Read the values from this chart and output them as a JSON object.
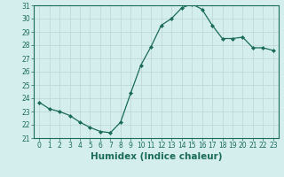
{
  "x": [
    0,
    1,
    2,
    3,
    4,
    5,
    6,
    7,
    8,
    9,
    10,
    11,
    12,
    13,
    14,
    15,
    16,
    17,
    18,
    19,
    20,
    21,
    22,
    23
  ],
  "y": [
    23.7,
    23.2,
    23.0,
    22.7,
    22.2,
    21.8,
    21.5,
    21.4,
    22.2,
    24.4,
    26.5,
    27.9,
    29.5,
    30.0,
    30.8,
    31.1,
    30.7,
    29.5,
    28.5,
    28.5,
    28.6,
    27.8,
    27.8,
    27.6
  ],
  "line_color": "#1a6b5a",
  "marker": "D",
  "marker_size": 2.0,
  "background_color": "#d4eeee",
  "grid_color": "#c0d8d8",
  "xlabel": "Humidex (Indice chaleur)",
  "ylim": [
    21,
    31
  ],
  "xlim": [
    -0.5,
    23.5
  ],
  "yticks": [
    21,
    22,
    23,
    24,
    25,
    26,
    27,
    28,
    29,
    30,
    31
  ],
  "xticks": [
    0,
    1,
    2,
    3,
    4,
    5,
    6,
    7,
    8,
    9,
    10,
    11,
    12,
    13,
    14,
    15,
    16,
    17,
    18,
    19,
    20,
    21,
    22,
    23
  ],
  "tick_label_fontsize": 5.5,
  "xlabel_fontsize": 7.5
}
